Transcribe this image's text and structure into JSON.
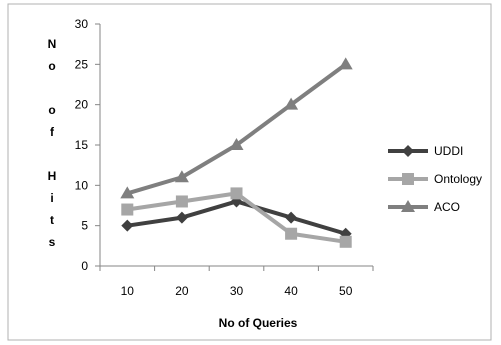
{
  "chart_data": {
    "type": "line",
    "title": "",
    "xlabel": "No of  Queries",
    "ylabel_chars": [
      "N",
      "o",
      "",
      "o",
      "f",
      "",
      "H",
      "i",
      "t",
      "s"
    ],
    "categories": [
      "10",
      "20",
      "30",
      "40",
      "50"
    ],
    "ylim": [
      0,
      30
    ],
    "yticks": [
      0,
      5,
      10,
      15,
      20,
      25,
      30
    ],
    "grid": false,
    "legend_position": "right",
    "series": [
      {
        "name": "UDDI",
        "values": [
          5,
          6,
          8,
          6,
          4
        ],
        "color": "#404040",
        "marker": "diamond"
      },
      {
        "name": "Ontology",
        "values": [
          7,
          8,
          9,
          4,
          3
        ],
        "color": "#a6a6a6",
        "marker": "square"
      },
      {
        "name": "ACO",
        "values": [
          9,
          11,
          15,
          20,
          25
        ],
        "color": "#7f7f7f",
        "marker": "triangle"
      }
    ]
  }
}
